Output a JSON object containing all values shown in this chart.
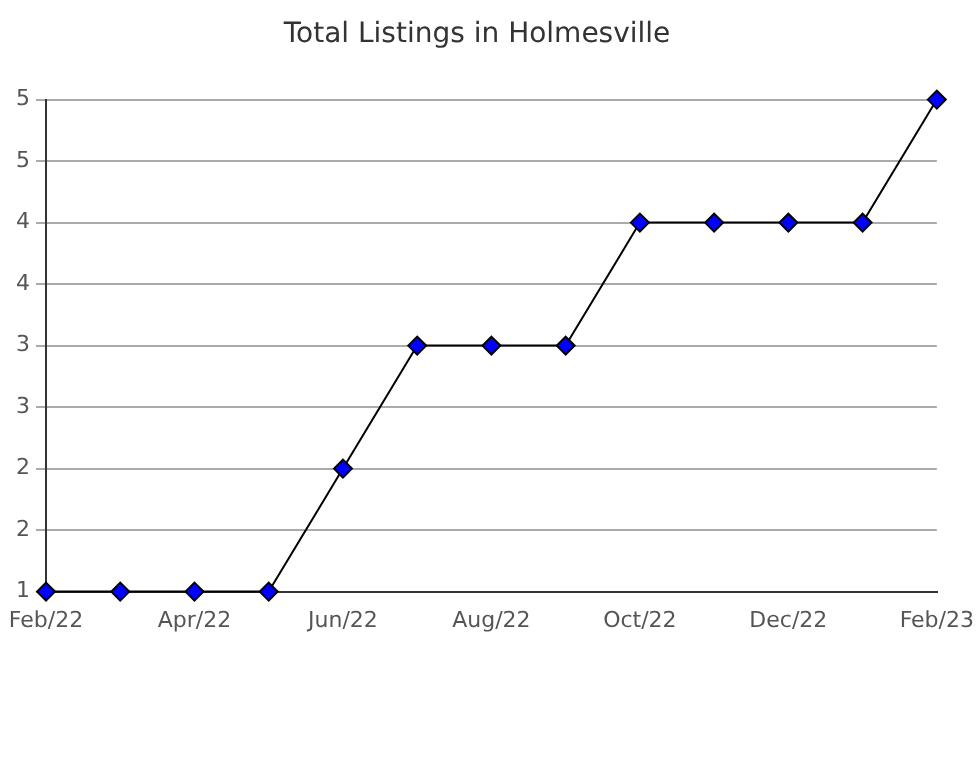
{
  "chart_data": {
    "type": "line",
    "title": "Total Listings in Holmesville",
    "categories": [
      "Feb/22",
      null,
      "Apr/22",
      null,
      "Jun/22",
      null,
      "Aug/22",
      null,
      "Oct/22",
      null,
      "Dec/22",
      null,
      "Feb/23"
    ],
    "series": [
      {
        "color": "#000000",
        "values": [
          1,
          1,
          1,
          1,
          2,
          3,
          3,
          3,
          4,
          4,
          4,
          4,
          5
        ]
      }
    ],
    "ylim": [
      1,
      5
    ],
    "yticks": [
      1,
      {
        "value": 1.5,
        "label": "2"
      },
      2,
      {
        "value": 2.5,
        "label": "3"
      },
      3,
      {
        "value": 3.5,
        "label": "4"
      },
      4,
      {
        "value": 4.5,
        "label": "5"
      },
      5
    ],
    "grid": "y",
    "marker": "diamond",
    "line_style": "solid",
    "legend": false
  }
}
